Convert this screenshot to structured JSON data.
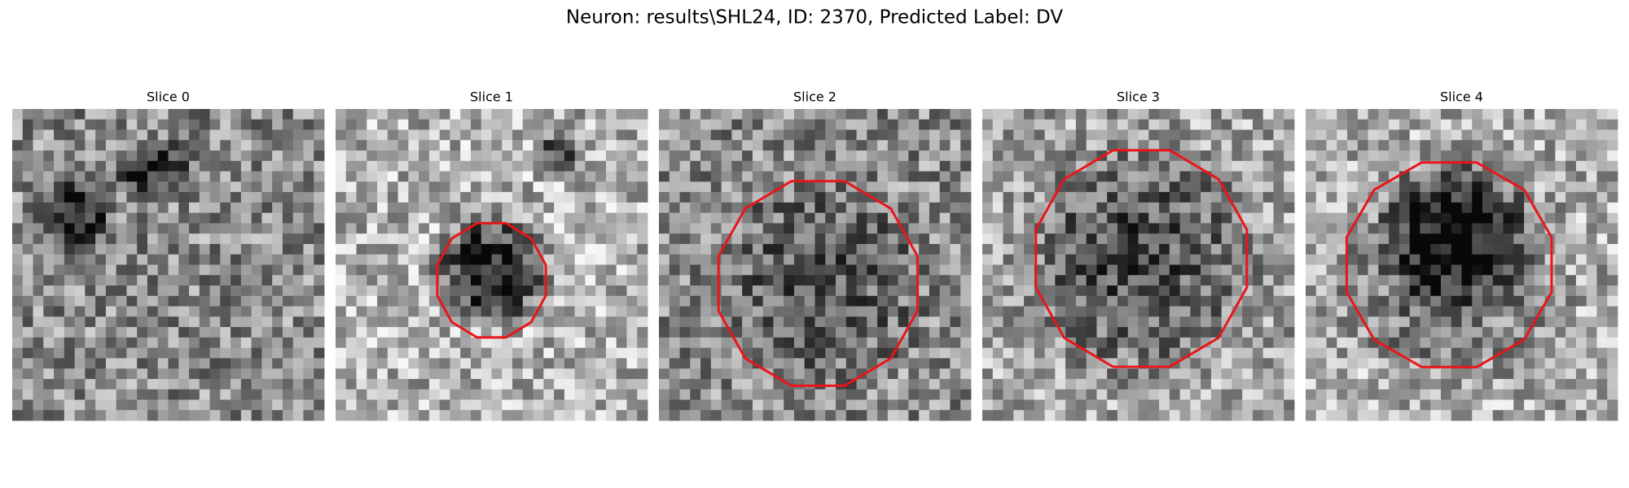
{
  "title": "Neuron: results\\SHL24, ID: 2370, Predicted Label: DV",
  "panels": [
    {
      "title": "Slice 0"
    },
    {
      "title": "Slice 1"
    },
    {
      "title": "Slice 2"
    },
    {
      "title": "Slice 3"
    },
    {
      "title": "Slice 4"
    }
  ]
}
